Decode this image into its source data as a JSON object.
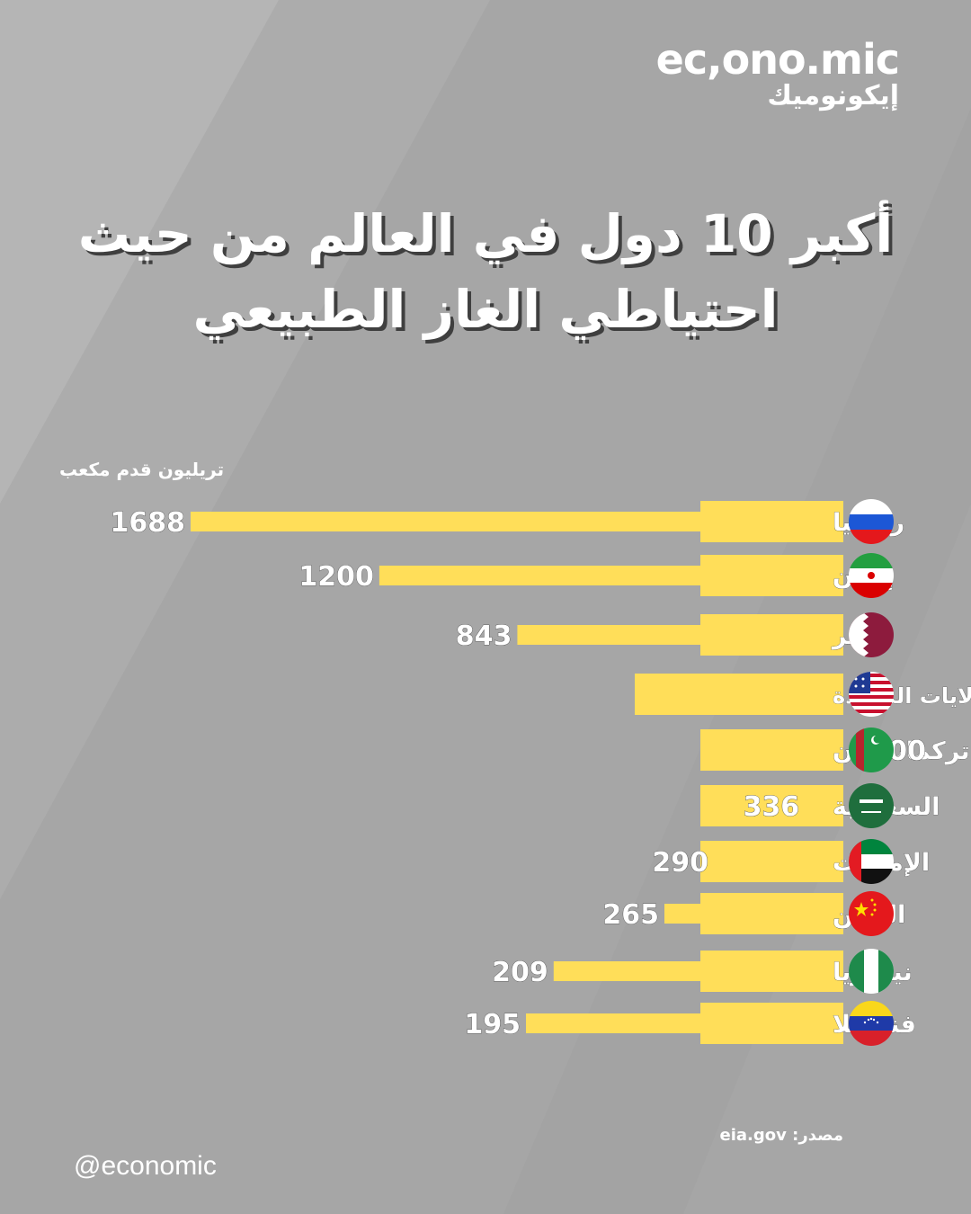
{
  "brand": {
    "logo_en": "ec,ono.mic",
    "logo_ar": "إيكونوميك",
    "handle": "@economic"
  },
  "title_lines": [
    "أكبر 10 دول في العالم من حيث",
    "احتياطي الغاز الطبيعي"
  ],
  "source": "مصدر: eia.gov",
  "colors": {
    "background": "#a6a6a6",
    "bar": "#ffde59",
    "text": "#ffffff",
    "label": "#3a3a3a"
  },
  "chart_data": {
    "type": "bar",
    "orientation": "horizontal",
    "unit_label": "تريليون قدم مكعب",
    "categories": [
      "روسيا",
      "إيران",
      "قطر",
      "الولايات المتحدة",
      "تركمانستان",
      "السعودية",
      "الإمارات",
      "الصين",
      "نيجيريا",
      "فنزويلا"
    ],
    "values": [
      1688,
      1200,
      843,
      615,
      400,
      336,
      290,
      265,
      209,
      195
    ],
    "flags": [
      "russia-flag",
      "iran-flag",
      "qatar-flag",
      "usa-flag",
      "turkmenistan-flag",
      "saudi-flag",
      "uae-flag",
      "china-flag",
      "nigeria-flag",
      "venezuela-flag"
    ]
  }
}
